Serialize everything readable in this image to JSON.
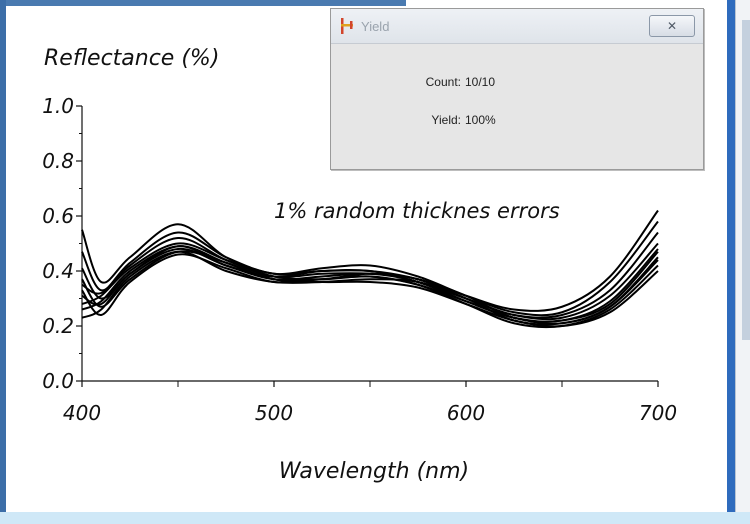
{
  "dialog": {
    "title": "Yield",
    "close_glyph": "✕",
    "count_label": "Count:",
    "count_value": "10/10",
    "yield_label": "Yield:",
    "yield_value": "100%",
    "icon": "yield-app-icon"
  },
  "chart_data": {
    "type": "line",
    "title": "",
    "xlabel": "Wavelength (nm)",
    "ylabel": "Reflectance (%)",
    "annotation": "1% random thicknes errors",
    "xlim": [
      400,
      700
    ],
    "ylim": [
      0.0,
      1.0
    ],
    "xticks": [
      "400",
      "500",
      "600",
      "700"
    ],
    "yticks": [
      "0.0",
      "0.2",
      "0.4",
      "0.6",
      "0.8",
      "1.0"
    ],
    "x": [
      400,
      410,
      425,
      450,
      475,
      500,
      525,
      550,
      575,
      600,
      625,
      650,
      675,
      700
    ],
    "series": [
      {
        "values": [
          0.55,
          0.36,
          0.45,
          0.57,
          0.45,
          0.39,
          0.4,
          0.4,
          0.37,
          0.31,
          0.26,
          0.27,
          0.38,
          0.62
        ]
      },
      {
        "values": [
          0.47,
          0.33,
          0.43,
          0.54,
          0.45,
          0.39,
          0.41,
          0.42,
          0.38,
          0.31,
          0.25,
          0.25,
          0.36,
          0.58
        ]
      },
      {
        "values": [
          0.41,
          0.3,
          0.39,
          0.49,
          0.42,
          0.38,
          0.4,
          0.4,
          0.36,
          0.3,
          0.24,
          0.23,
          0.31,
          0.5
        ]
      },
      {
        "values": [
          0.37,
          0.27,
          0.37,
          0.47,
          0.43,
          0.37,
          0.37,
          0.39,
          0.37,
          0.31,
          0.23,
          0.22,
          0.28,
          0.47
        ]
      },
      {
        "values": [
          0.33,
          0.24,
          0.36,
          0.46,
          0.41,
          0.36,
          0.37,
          0.38,
          0.35,
          0.29,
          0.23,
          0.21,
          0.27,
          0.45
        ]
      },
      {
        "values": [
          0.23,
          0.26,
          0.38,
          0.47,
          0.4,
          0.36,
          0.36,
          0.37,
          0.36,
          0.3,
          0.22,
          0.21,
          0.27,
          0.44
        ]
      },
      {
        "values": [
          0.31,
          0.28,
          0.39,
          0.48,
          0.42,
          0.37,
          0.38,
          0.39,
          0.36,
          0.29,
          0.23,
          0.22,
          0.29,
          0.48
        ]
      },
      {
        "values": [
          0.28,
          0.31,
          0.41,
          0.5,
          0.44,
          0.38,
          0.37,
          0.38,
          0.35,
          0.28,
          0.21,
          0.2,
          0.26,
          0.42
        ]
      },
      {
        "values": [
          0.26,
          0.29,
          0.4,
          0.49,
          0.43,
          0.37,
          0.36,
          0.36,
          0.34,
          0.28,
          0.22,
          0.2,
          0.25,
          0.4
        ]
      },
      {
        "values": [
          0.35,
          0.32,
          0.42,
          0.52,
          0.44,
          0.38,
          0.39,
          0.39,
          0.37,
          0.3,
          0.24,
          0.24,
          0.33,
          0.54
        ]
      }
    ],
    "grid": false,
    "legend": "none"
  }
}
